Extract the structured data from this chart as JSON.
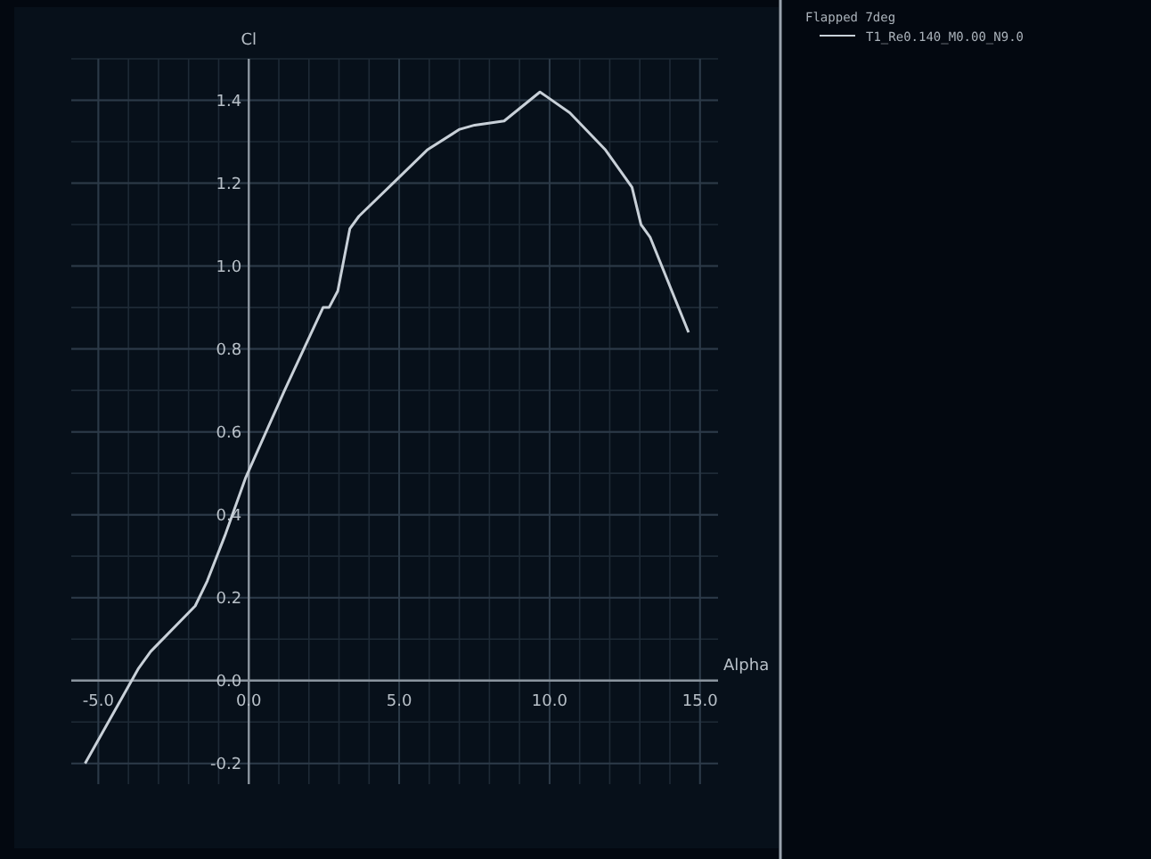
{
  "chart_data": {
    "type": "line",
    "xlabel": "Alpha",
    "ylabel": "Cl",
    "legend_title": "Flapped 7deg",
    "legend": "top right",
    "grid": true,
    "marker": "none",
    "line_style": "solid",
    "xlim": [
      -5.9,
      15.6
    ],
    "ylim": [
      -0.25,
      1.5
    ],
    "xticks": [
      {
        "value": -5,
        "label": "-5.0"
      },
      {
        "value": 0,
        "label": "0.0"
      },
      {
        "value": 5,
        "label": "5.0"
      },
      {
        "value": 10,
        "label": "10.0"
      },
      {
        "value": 15,
        "label": "15.0"
      }
    ],
    "yticks": [
      {
        "value": -0.2,
        "label": "-0.2"
      },
      {
        "value": 0,
        "label": "0.0"
      },
      {
        "value": 0.2,
        "label": "0.2"
      },
      {
        "value": 0.4,
        "label": "0.4"
      },
      {
        "value": 0.6,
        "label": "0.6"
      },
      {
        "value": 0.8,
        "label": "0.8"
      },
      {
        "value": 1,
        "label": "1.0"
      },
      {
        "value": 1.2,
        "label": "1.2"
      },
      {
        "value": 1.4,
        "label": "1.4"
      }
    ],
    "series": [
      {
        "name": "T1_Re0.140_M0.00_N9.0",
        "color": "#c8d0d8",
        "x": [
          -5.44,
          -3.66,
          -3.26,
          -1.78,
          -1.38,
          -0.79,
          -0.1,
          1.19,
          2.47,
          2.67,
          2.96,
          3.36,
          3.66,
          4.94,
          5.93,
          7.01,
          7.51,
          8.49,
          9.68,
          9.88,
          10.67,
          11.86,
          12.74,
          13.04,
          13.34,
          14.62
        ],
        "values": [
          -0.2,
          0.03,
          0.07,
          0.18,
          0.24,
          0.35,
          0.49,
          0.7,
          0.9,
          0.9,
          0.94,
          1.09,
          1.12,
          1.21,
          1.28,
          1.33,
          1.34,
          1.35,
          1.42,
          1.41,
          1.37,
          1.28,
          1.19,
          1.1,
          1.07,
          0.84
        ]
      }
    ]
  }
}
